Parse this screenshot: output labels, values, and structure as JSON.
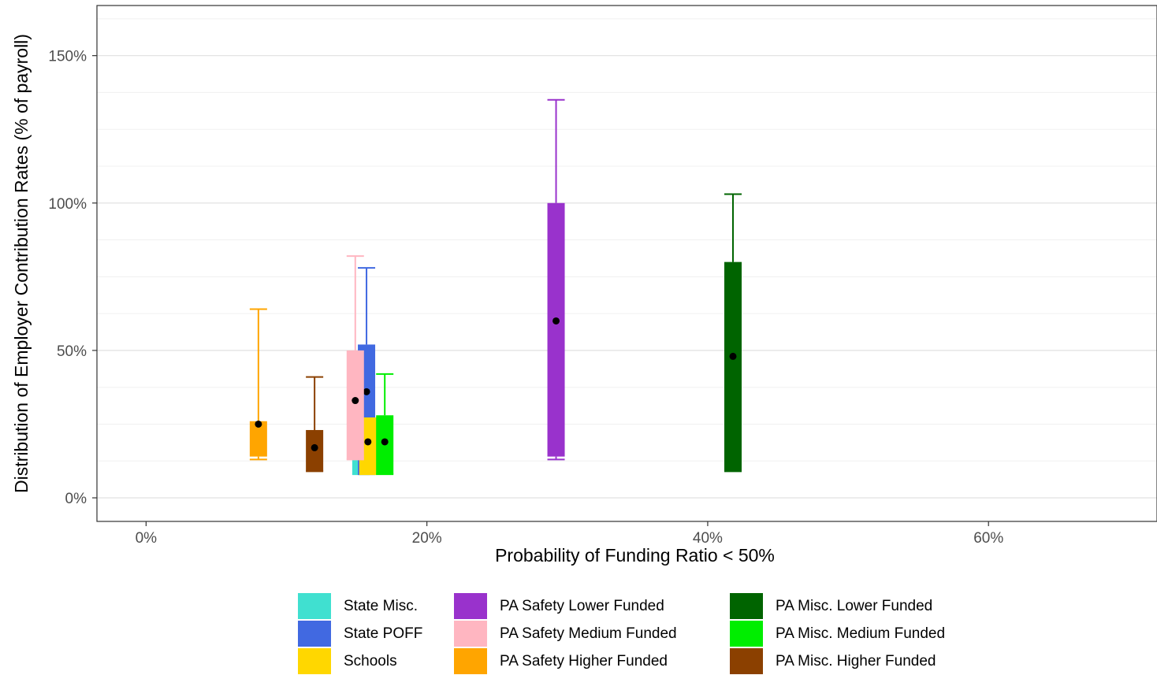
{
  "chart_data": {
    "type": "boxplot",
    "title": "",
    "xlabel": "Probability of Funding Ratio < 50%",
    "ylabel": "Distribution of Employer Contribution Rates (% of payroll)",
    "xlim": [
      -3.5,
      72
    ],
    "ylim": [
      -8,
      167
    ],
    "x_ticks": [
      0,
      20,
      40,
      60
    ],
    "x_tick_labels": [
      "0%",
      "20%",
      "40%",
      "60%"
    ],
    "y_ticks": [
      0,
      50,
      100,
      150
    ],
    "y_tick_labels": [
      "0%",
      "50%",
      "100%",
      "150%"
    ],
    "grid": true,
    "legend_position": "bottom",
    "series": [
      {
        "name": "State Misc.",
        "color": "#40E0D0",
        "x": 15.3,
        "min": 8,
        "q1": 8,
        "median": 21,
        "q3": 27,
        "max": 27
      },
      {
        "name": "State POFF",
        "color": "#4169E1",
        "x": 15.7,
        "min": 8,
        "q1": 8,
        "median": 36,
        "q3": 52,
        "max": 78
      },
      {
        "name": "Schools",
        "color": "#FFD700",
        "x": 15.8,
        "min": 8,
        "q1": 8,
        "median": 19,
        "q3": 27,
        "max": 27
      },
      {
        "name": "PA Safety Lower Funded",
        "color": "#9932CC",
        "x": 29.2,
        "min": 13,
        "q1": 14,
        "median": 60,
        "q3": 100,
        "max": 135
      },
      {
        "name": "PA Safety Medium Funded",
        "color": "#FFB6C1",
        "x": 14.9,
        "min": 13,
        "q1": 13,
        "median": 33,
        "q3": 50,
        "max": 82
      },
      {
        "name": "PA Safety Higher Funded",
        "color": "#FFA500",
        "x": 8.0,
        "min": 13,
        "q1": 14,
        "median": 25,
        "q3": 26,
        "max": 64
      },
      {
        "name": "PA Misc. Lower Funded",
        "color": "#006400",
        "x": 41.8,
        "min": 9,
        "q1": 9,
        "median": 48,
        "q3": 80,
        "max": 103
      },
      {
        "name": "PA Misc. Medium Funded",
        "color": "#00EE00",
        "x": 17.0,
        "min": 8,
        "q1": 8,
        "median": 19,
        "q3": 28,
        "max": 42
      },
      {
        "name": "PA Misc. Higher Funded",
        "color": "#8B4000",
        "x": 12.0,
        "min": 9,
        "q1": 9,
        "median": 17,
        "q3": 23,
        "max": 41
      }
    ]
  },
  "legend": {
    "items": [
      {
        "label": "State Misc.",
        "color": "#40E0D0"
      },
      {
        "label": "State POFF",
        "color": "#4169E1"
      },
      {
        "label": "Schools",
        "color": "#FFD700"
      },
      {
        "label": "PA Safety Lower Funded",
        "color": "#9932CC"
      },
      {
        "label": "PA Safety Medium Funded",
        "color": "#FFB6C1"
      },
      {
        "label": "PA Safety Higher Funded",
        "color": "#FFA500"
      },
      {
        "label": "PA Misc. Lower Funded",
        "color": "#006400"
      },
      {
        "label": "PA Misc. Medium Funded",
        "color": "#00EE00"
      },
      {
        "label": "PA Misc. Higher Funded",
        "color": "#8B4000"
      }
    ]
  }
}
